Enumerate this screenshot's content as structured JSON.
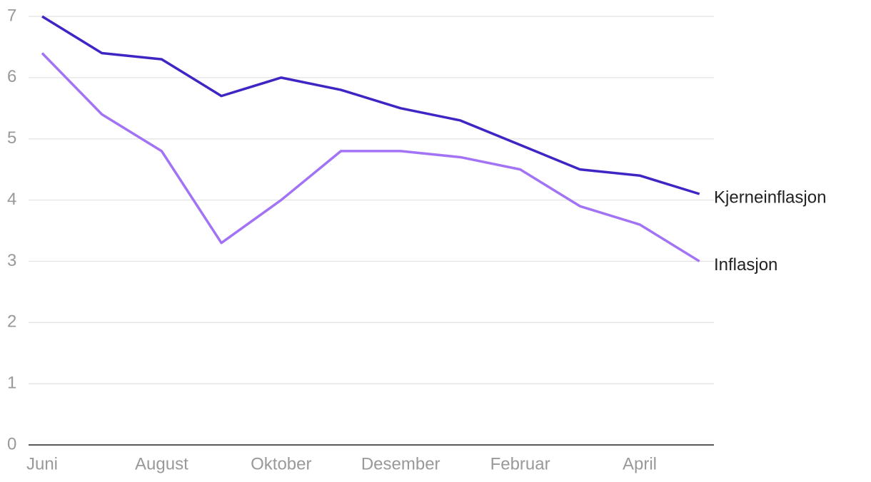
{
  "chart_data": {
    "type": "line",
    "categories": [
      "Juni",
      null,
      "August",
      null,
      "Oktober",
      null,
      "Desember",
      null,
      "Februar",
      null,
      "April",
      null
    ],
    "series": [
      {
        "name": "Kjerneinflasjon",
        "color": "#3d26c4",
        "values": [
          7.0,
          6.4,
          6.3,
          5.7,
          6.0,
          5.8,
          5.5,
          5.3,
          4.9,
          4.5,
          4.4,
          4.1
        ]
      },
      {
        "name": "Inflasjon",
        "color": "#a274f5",
        "values": [
          6.4,
          5.4,
          4.8,
          3.3,
          4.0,
          4.8,
          4.8,
          4.7,
          4.5,
          3.9,
          3.6,
          3.0
        ]
      }
    ],
    "ylim": [
      0,
      7
    ],
    "yticks": [
      0,
      1,
      2,
      3,
      4,
      5,
      6,
      7
    ],
    "grid": true
  }
}
